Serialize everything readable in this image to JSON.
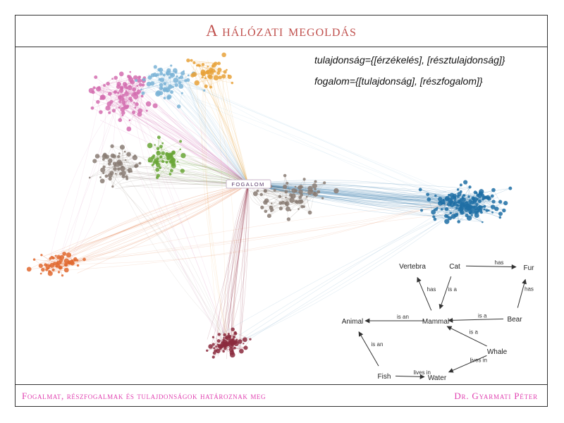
{
  "slide": {
    "title": "A hálózati megoldás",
    "formula_1": "tulajdonság={[érzékelés], [résztulajdonság]}",
    "formula_2": "fogalom={[tulajdonság], [részfogalom]}",
    "hub_label": "FOGALOM",
    "footer_left": "Fogalmat, részfogalmak és tulajdonságok határoznak meg",
    "footer_right": "Dr. Gyarmati Péter"
  },
  "colors": {
    "title": "#c0504d",
    "footer": "#e040b0",
    "cluster_pink": "#d36fb0",
    "cluster_blue": "#1f6fa5",
    "cluster_green": "#6aa637",
    "cluster_orange": "#e0692f",
    "cluster_maroon": "#8b2b3e",
    "cluster_gray": "#8a7d74",
    "cluster_gold": "#e8a23b",
    "cluster_lightblue": "#7ab3d6"
  },
  "semantic_net": {
    "nodes": [
      "Vertebra",
      "Cat",
      "Fur",
      "Animal",
      "Mammal",
      "Bear",
      "Whale",
      "Fish",
      "Water"
    ],
    "edges": [
      {
        "from": "Cat",
        "to": "Fur",
        "label": "has"
      },
      {
        "from": "Mammal",
        "to": "Vertebra",
        "label": "has"
      },
      {
        "from": "Cat",
        "to": "Mammal",
        "label": "is a"
      },
      {
        "from": "Bear",
        "to": "Fur",
        "label": "has"
      },
      {
        "from": "Bear",
        "to": "Mammal",
        "label": "is a"
      },
      {
        "from": "Mammal",
        "to": "Animal",
        "label": "is an"
      },
      {
        "from": "Whale",
        "to": "Mammal",
        "label": "is a"
      },
      {
        "from": "Fish",
        "to": "Animal",
        "label": "is an"
      },
      {
        "from": "Fish",
        "to": "Water",
        "label": "lives in"
      },
      {
        "from": "Whale",
        "to": "Water",
        "label": "lives in"
      }
    ]
  }
}
